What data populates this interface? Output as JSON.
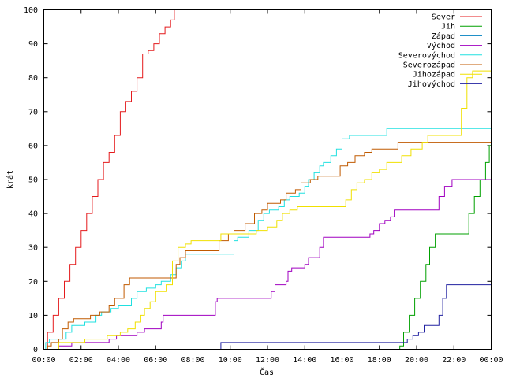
{
  "chart_data": {
    "type": "line",
    "title": "",
    "xlabel": "Čas",
    "ylabel": "krát",
    "xlim": [
      0,
      24
    ],
    "ylim": [
      0,
      100
    ],
    "x_tick_labels": [
      "00:00",
      "02:00",
      "04:00",
      "06:00",
      "08:00",
      "10:00",
      "12:00",
      "14:00",
      "16:00",
      "18:00",
      "20:00",
      "22:00",
      "00:00"
    ],
    "y_tick_labels": [
      "0",
      "10",
      "20",
      "30",
      "40",
      "50",
      "60",
      "70",
      "80",
      "90",
      "100"
    ],
    "grid": false,
    "legend_position": "top-right",
    "series": [
      {
        "name": "Sever",
        "color": "#e41a1c",
        "points": [
          [
            0.0,
            0
          ],
          [
            0.2,
            5
          ],
          [
            0.5,
            10
          ],
          [
            0.8,
            15
          ],
          [
            1.1,
            20
          ],
          [
            1.4,
            25
          ],
          [
            1.7,
            30
          ],
          [
            2.0,
            35
          ],
          [
            2.3,
            40
          ],
          [
            2.6,
            45
          ],
          [
            2.9,
            50
          ],
          [
            3.2,
            55
          ],
          [
            3.5,
            58
          ],
          [
            3.8,
            63
          ],
          [
            4.1,
            70
          ],
          [
            4.4,
            73
          ],
          [
            4.7,
            76
          ],
          [
            5.0,
            80
          ],
          [
            5.3,
            87
          ],
          [
            5.6,
            88
          ],
          [
            5.9,
            90
          ],
          [
            6.2,
            93
          ],
          [
            6.5,
            95
          ],
          [
            6.8,
            97
          ],
          [
            7.0,
            100
          ]
        ]
      },
      {
        "name": "Jih",
        "color": "#00a000",
        "points": [
          [
            0.0,
            0
          ],
          [
            19.0,
            0
          ],
          [
            19.1,
            1
          ],
          [
            19.3,
            5
          ],
          [
            19.6,
            10
          ],
          [
            19.9,
            15
          ],
          [
            20.2,
            20
          ],
          [
            20.5,
            25
          ],
          [
            20.7,
            30
          ],
          [
            21.0,
            34
          ],
          [
            22.5,
            34
          ],
          [
            22.8,
            40
          ],
          [
            23.1,
            45
          ],
          [
            23.4,
            50
          ],
          [
            23.7,
            55
          ],
          [
            23.9,
            60
          ],
          [
            24.0,
            62
          ]
        ]
      },
      {
        "name": "Západ",
        "color": "#0080c0",
        "points": [
          [
            0.0,
            0
          ],
          [
            24.0,
            0
          ]
        ]
      },
      {
        "name": "Východ",
        "color": "#a000c0",
        "points": [
          [
            0.0,
            0
          ],
          [
            0.8,
            1
          ],
          [
            1.5,
            2
          ],
          [
            3.5,
            3
          ],
          [
            3.9,
            4
          ],
          [
            5.0,
            5
          ],
          [
            5.4,
            6
          ],
          [
            6.3,
            8
          ],
          [
            6.4,
            10
          ],
          [
            8.8,
            10
          ],
          [
            9.2,
            14
          ],
          [
            9.3,
            15
          ],
          [
            12.0,
            15
          ],
          [
            12.2,
            17
          ],
          [
            12.4,
            19
          ],
          [
            13.0,
            20
          ],
          [
            13.1,
            23
          ],
          [
            13.3,
            24
          ],
          [
            14.0,
            25
          ],
          [
            14.2,
            27
          ],
          [
            14.8,
            30
          ],
          [
            15.0,
            33
          ],
          [
            17.3,
            33
          ],
          [
            17.5,
            34
          ],
          [
            17.7,
            35
          ],
          [
            18.0,
            37
          ],
          [
            18.3,
            38
          ],
          [
            18.6,
            39
          ],
          [
            18.8,
            41
          ],
          [
            21.1,
            41
          ],
          [
            21.2,
            45
          ],
          [
            21.5,
            48
          ],
          [
            21.9,
            50
          ],
          [
            24.0,
            50
          ]
        ]
      },
      {
        "name": "Severovýchod",
        "color": "#20e0e0",
        "points": [
          [
            0.0,
            0
          ],
          [
            0.1,
            2
          ],
          [
            0.3,
            3
          ],
          [
            1.1,
            3
          ],
          [
            1.2,
            5
          ],
          [
            1.5,
            7
          ],
          [
            2.2,
            8
          ],
          [
            2.8,
            10
          ],
          [
            3.1,
            11
          ],
          [
            3.6,
            12
          ],
          [
            4.0,
            13
          ],
          [
            4.7,
            15
          ],
          [
            5.0,
            17
          ],
          [
            5.5,
            18
          ],
          [
            6.0,
            19
          ],
          [
            6.3,
            20
          ],
          [
            6.8,
            22
          ],
          [
            7.1,
            24
          ],
          [
            7.4,
            26
          ],
          [
            7.6,
            28
          ],
          [
            10.0,
            28
          ],
          [
            10.2,
            32
          ],
          [
            10.4,
            33
          ],
          [
            11.0,
            35
          ],
          [
            11.5,
            38
          ],
          [
            11.8,
            40
          ],
          [
            12.1,
            41
          ],
          [
            12.6,
            42
          ],
          [
            12.9,
            44
          ],
          [
            13.2,
            45
          ],
          [
            13.7,
            46
          ],
          [
            14.0,
            48
          ],
          [
            14.2,
            50
          ],
          [
            14.5,
            52
          ],
          [
            14.8,
            54
          ],
          [
            15.0,
            55
          ],
          [
            15.4,
            57
          ],
          [
            15.7,
            59
          ],
          [
            16.0,
            62
          ],
          [
            16.4,
            63
          ],
          [
            18.3,
            63
          ],
          [
            18.4,
            65
          ],
          [
            24.0,
            65
          ]
        ]
      },
      {
        "name": "Severozápad",
        "color": "#c05a00",
        "points": [
          [
            0.0,
            0
          ],
          [
            0.2,
            1
          ],
          [
            0.4,
            2
          ],
          [
            0.8,
            3
          ],
          [
            1.0,
            6
          ],
          [
            1.3,
            8
          ],
          [
            1.6,
            9
          ],
          [
            2.3,
            9
          ],
          [
            2.5,
            10
          ],
          [
            3.0,
            11
          ],
          [
            3.5,
            13
          ],
          [
            3.8,
            15
          ],
          [
            4.3,
            19
          ],
          [
            4.6,
            21
          ],
          [
            7.0,
            21
          ],
          [
            7.1,
            25
          ],
          [
            7.3,
            27
          ],
          [
            7.6,
            29
          ],
          [
            9.2,
            29
          ],
          [
            9.4,
            32
          ],
          [
            9.9,
            34
          ],
          [
            10.2,
            35
          ],
          [
            10.8,
            37
          ],
          [
            11.3,
            40
          ],
          [
            11.7,
            41
          ],
          [
            12.0,
            43
          ],
          [
            12.7,
            44
          ],
          [
            13.0,
            46
          ],
          [
            13.5,
            47
          ],
          [
            13.8,
            49
          ],
          [
            14.3,
            50
          ],
          [
            14.7,
            51
          ],
          [
            15.6,
            51
          ],
          [
            15.9,
            54
          ],
          [
            16.3,
            55
          ],
          [
            16.7,
            57
          ],
          [
            17.2,
            58
          ],
          [
            17.6,
            59
          ],
          [
            18.7,
            59
          ],
          [
            19.0,
            61
          ],
          [
            24.0,
            61
          ]
        ]
      },
      {
        "name": "Jihozápad",
        "color": "#f0e000",
        "points": [
          [
            0.0,
            0
          ],
          [
            0.8,
            2
          ],
          [
            1.4,
            2
          ],
          [
            2.2,
            3
          ],
          [
            3.2,
            3
          ],
          [
            3.4,
            4
          ],
          [
            4.1,
            5
          ],
          [
            4.5,
            6
          ],
          [
            4.9,
            8
          ],
          [
            5.2,
            10
          ],
          [
            5.4,
            12
          ],
          [
            5.7,
            14
          ],
          [
            6.0,
            17
          ],
          [
            6.6,
            19
          ],
          [
            6.9,
            26
          ],
          [
            7.2,
            30
          ],
          [
            7.6,
            31
          ],
          [
            7.9,
            32
          ],
          [
            9.2,
            32
          ],
          [
            9.5,
            34
          ],
          [
            11.2,
            34
          ],
          [
            11.4,
            35
          ],
          [
            12.0,
            36
          ],
          [
            12.5,
            38
          ],
          [
            12.8,
            40
          ],
          [
            13.2,
            41
          ],
          [
            13.6,
            42
          ],
          [
            16.0,
            42
          ],
          [
            16.2,
            44
          ],
          [
            16.5,
            47
          ],
          [
            16.8,
            49
          ],
          [
            17.2,
            50
          ],
          [
            17.6,
            52
          ],
          [
            18.0,
            53
          ],
          [
            18.4,
            55
          ],
          [
            19.2,
            57
          ],
          [
            19.7,
            59
          ],
          [
            20.3,
            61
          ],
          [
            20.6,
            63
          ],
          [
            22.1,
            63
          ],
          [
            22.4,
            71
          ],
          [
            22.7,
            80
          ],
          [
            23.0,
            82
          ],
          [
            24.0,
            82
          ]
        ]
      },
      {
        "name": "Jihovýchod",
        "color": "#2020a0",
        "points": [
          [
            0.0,
            0
          ],
          [
            9.4,
            0
          ],
          [
            9.5,
            2
          ],
          [
            19.0,
            2
          ],
          [
            19.3,
            2
          ],
          [
            19.5,
            3
          ],
          [
            19.8,
            4
          ],
          [
            20.1,
            5
          ],
          [
            20.4,
            7
          ],
          [
            21.0,
            7
          ],
          [
            21.2,
            10
          ],
          [
            21.4,
            15
          ],
          [
            21.6,
            19
          ],
          [
            24.0,
            19
          ]
        ]
      }
    ]
  }
}
